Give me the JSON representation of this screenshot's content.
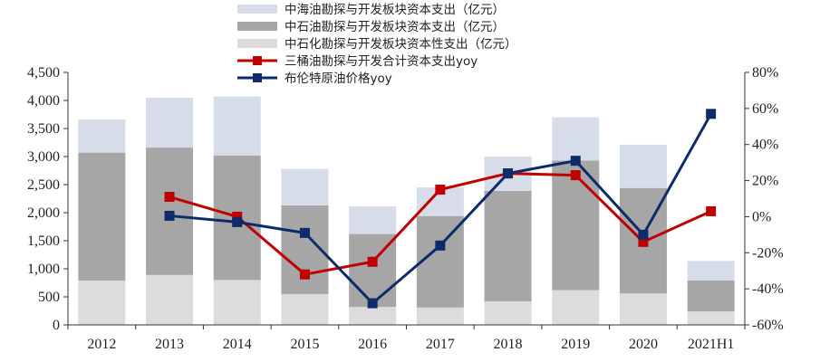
{
  "chart_data": {
    "type": "bar",
    "categories": [
      "2012",
      "2013",
      "2014",
      "2015",
      "2016",
      "2017",
      "2018",
      "2019",
      "2020",
      "2021H1"
    ],
    "stack_layers": [
      {
        "name": "中石化勘探与开发板块资本性支出（亿元）",
        "color": "#dcdcdc",
        "values": [
          790,
          890,
          800,
          550,
          320,
          310,
          420,
          620,
          560,
          240
        ]
      },
      {
        "name": "中石油勘探与开发板块资本支出（亿元）",
        "color": "#a6a6a6",
        "values": [
          2280,
          2270,
          2220,
          1580,
          1300,
          1630,
          1970,
          2310,
          1880,
          550
        ]
      },
      {
        "name": "中海油勘探与开发板块资本支出（亿元）",
        "color": "#d6dde8",
        "values": [
          590,
          890,
          1050,
          650,
          490,
          510,
          610,
          770,
          770,
          350
        ]
      }
    ],
    "line_series": [
      {
        "name": "三桶油勘探与开发合计资本支出yoy",
        "color": "#c00000",
        "marker": "square",
        "values": [
          null,
          11,
          0,
          -32,
          -25,
          15,
          24,
          23,
          -14,
          3
        ]
      },
      {
        "name": "布伦特原油价格yoy",
        "color": "#0d2a6b",
        "marker": "square",
        "values": [
          null,
          0.5,
          -3,
          -9,
          -48,
          -16,
          24,
          31,
          -10,
          57
        ]
      }
    ],
    "legend_order": [
      "中海油勘探与开发板块资本支出（亿元）",
      "中石油勘探与开发板块资本支出（亿元）",
      "中石化勘探与开发板块资本性支出（亿元）",
      "三桶油勘探与开发合计资本支出yoy",
      "布伦特原油价格yoy"
    ],
    "y_left": {
      "min": 0,
      "max": 4500,
      "step": 500,
      "tick_labels": [
        "0",
        "500",
        "1,000",
        "1,500",
        "2,000",
        "2,500",
        "3,000",
        "3,500",
        "4,000",
        "4,500"
      ]
    },
    "y_right": {
      "min": -60,
      "max": 80,
      "step": 20,
      "tick_labels": [
        "-60%",
        "-40%",
        "-20%",
        "0%",
        "20%",
        "40%",
        "60%",
        "80%"
      ]
    },
    "grid": false,
    "legend_position": "top-center"
  }
}
